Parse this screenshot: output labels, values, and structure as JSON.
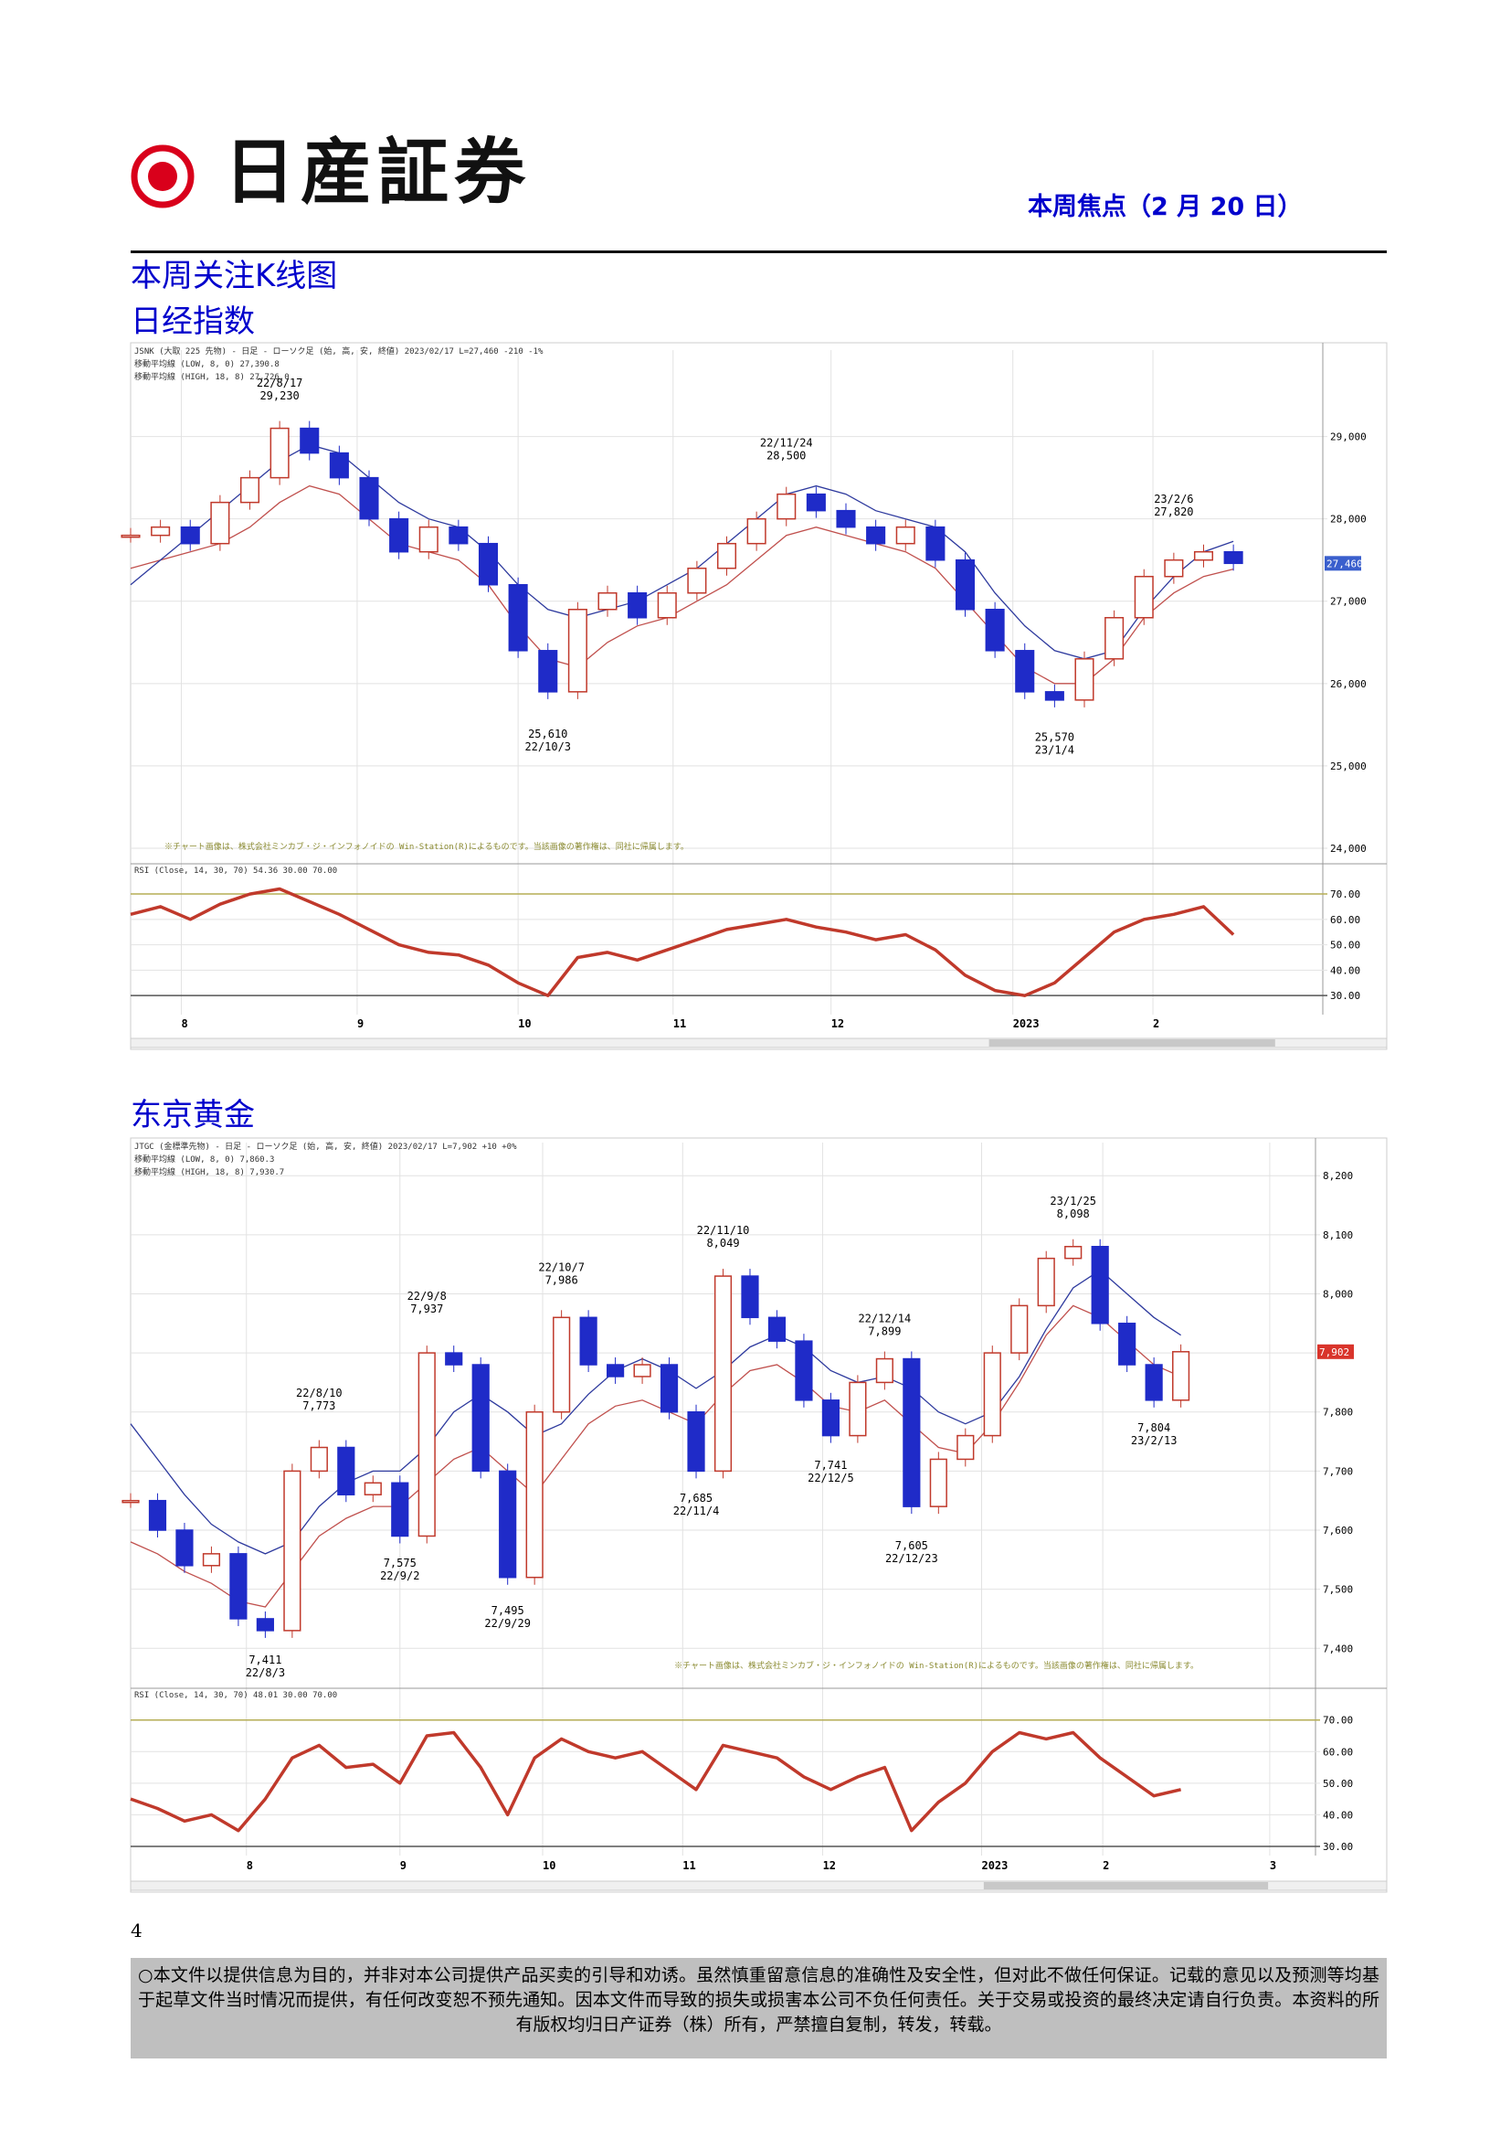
{
  "header": {
    "brand": "日産証券",
    "focus": "本周焦点（2 月 20 日）"
  },
  "section_title": "本周关注K线图",
  "charts": [
    {
      "type": "candlestick",
      "title": "日经指数",
      "header_lines": [
        "JSNK (大取 225 先物) - 日足 - ローソク足 (始, 高, 安, 終値)   2023/02/17  L=27,460  -210  -1%",
        "移動平均線 (LOW, 8, 0) 27,390.8",
        "移動平均線 (HIGH, 18, 8) 27,726.0"
      ],
      "note": "※チャート画像は、株式会社ミンカブ・ジ・インフォノイドの Win-Station(R)によるものです。当該画像の著作権は、同社に帰属します。",
      "xlim": [
        0,
        40
      ],
      "xticks": [
        {
          "value": 1.7,
          "label": "8"
        },
        {
          "value": 7.6,
          "label": "9"
        },
        {
          "value": 13,
          "label": "10"
        },
        {
          "value": 18.2,
          "label": "11"
        },
        {
          "value": 23.5,
          "label": "12"
        },
        {
          "value": 29.6,
          "label": "2023"
        },
        {
          "value": 34.3,
          "label": "2"
        }
      ],
      "ylim": [
        23900,
        30050
      ],
      "yticks": [
        {
          "value": 24000,
          "label": "24,000"
        },
        {
          "value": 25000,
          "label": "25,000"
        },
        {
          "value": 26000,
          "label": "26,000"
        },
        {
          "value": 27000,
          "label": "27,000"
        },
        {
          "value": 28000,
          "label": "28,000"
        },
        {
          "value": 29000,
          "label": "29,000"
        }
      ],
      "closes": [
        27800,
        27900,
        27700,
        28200,
        28500,
        29100,
        28800,
        28500,
        28000,
        27600,
        27900,
        27700,
        27200,
        26400,
        25900,
        26900,
        27100,
        26800,
        27100,
        27400,
        27700,
        28000,
        28300,
        28100,
        27900,
        27700,
        27900,
        27500,
        26900,
        26400,
        25900,
        25800,
        26300,
        26800,
        27300,
        27500,
        27600,
        27460
      ],
      "ma_low": {
        "color": "#c0504d",
        "values": [
          27400,
          27500,
          27600,
          27700,
          27900,
          28200,
          28400,
          28300,
          28000,
          27700,
          27600,
          27500,
          27200,
          26700,
          26300,
          26200,
          26500,
          26700,
          26800,
          27000,
          27200,
          27500,
          27800,
          27900,
          27800,
          27700,
          27600,
          27400,
          27000,
          26600,
          26200,
          26000,
          26000,
          26300,
          26800,
          27100,
          27300,
          27390
        ]
      },
      "ma_high": {
        "color": "#2e3a9e",
        "values": [
          27200,
          27500,
          27800,
          28100,
          28400,
          28700,
          28900,
          28800,
          28500,
          28200,
          28000,
          27900,
          27600,
          27200,
          26900,
          26800,
          26900,
          27000,
          27200,
          27400,
          27700,
          28000,
          28300,
          28400,
          28300,
          28100,
          28000,
          27900,
          27600,
          27100,
          26700,
          26400,
          26300,
          26400,
          26900,
          27300,
          27600,
          27726
        ]
      },
      "up_color": "#c0392b",
      "down_color": "#1f2bc8",
      "last": {
        "value": 27460,
        "label": "27,460",
        "color": "#3a5fcd"
      },
      "annotations": [
        {
          "x": 5,
          "value": 29230,
          "price": "29,230",
          "date": "22/8/17",
          "position": "above"
        },
        {
          "x": 14,
          "value": 25610,
          "price": "25,610",
          "date": "22/10/3",
          "position": "below"
        },
        {
          "x": 22,
          "value": 28500,
          "price": "28,500",
          "date": "22/11/24",
          "position": "above"
        },
        {
          "x": 31,
          "value": 25570,
          "price": "25,570",
          "date": "23/1/4",
          "position": "below"
        },
        {
          "x": 35,
          "value": 27820,
          "price": "27,820",
          "date": "23/2/6",
          "position": "above"
        }
      ],
      "rsi": {
        "header": "RSI (Close, 14, 30, 70) 54.36 30.00 70.00",
        "color": "#c0392b",
        "ylim": [
          22.5,
          76.5
        ],
        "yticks": [
          {
            "value": 30,
            "label": "30.00"
          },
          {
            "value": 40,
            "label": "40.00"
          },
          {
            "value": 50,
            "label": "50.00"
          },
          {
            "value": 60,
            "label": "60.00"
          },
          {
            "value": 70,
            "label": "70.00"
          }
        ],
        "values": [
          62,
          65,
          60,
          66,
          70,
          72,
          67,
          62,
          56,
          50,
          47,
          46,
          42,
          35,
          30,
          45,
          47,
          44,
          48,
          52,
          56,
          58,
          60,
          57,
          55,
          52,
          54,
          48,
          38,
          32,
          30,
          35,
          45,
          55,
          60,
          62,
          65,
          54
        ]
      }
    },
    {
      "type": "candlestick",
      "title": "东京黄金",
      "header_lines": [
        "JTGC (金標準先物) - 日足 - ローソク足 (始, 高, 安, 終値)   2023/02/17  L=7,902  +10  +0%",
        "移動平均線 (LOW, 8, 0) 7,860.3",
        "移動平均線 (HIGH, 18, 8) 7,930.7"
      ],
      "note": "※チャート画像は、株式会社ミンカブ・ジ・インフォノイドの Win-Station(R)によるものです。当該画像の著作権は、同社に帰属します。",
      "xlim": [
        0,
        44
      ],
      "xticks": [
        {
          "value": 4.3,
          "label": "8"
        },
        {
          "value": 10,
          "label": "9"
        },
        {
          "value": 15.3,
          "label": "10"
        },
        {
          "value": 20.5,
          "label": "11"
        },
        {
          "value": 25.7,
          "label": "12"
        },
        {
          "value": 31.6,
          "label": "2023"
        },
        {
          "value": 36.1,
          "label": "2"
        },
        {
          "value": 42.3,
          "label": "3"
        }
      ],
      "ylim": [
        7354,
        8256
      ],
      "yticks": [
        {
          "value": 7400,
          "label": "7,400"
        },
        {
          "value": 7500,
          "label": "7,500"
        },
        {
          "value": 7600,
          "label": "7,600"
        },
        {
          "value": 7700,
          "label": "7,700"
        },
        {
          "value": 7800,
          "label": "7,800"
        },
        {
          "value": 7900,
          "label": "7,900"
        },
        {
          "value": 8000,
          "label": "8,000"
        },
        {
          "value": 8100,
          "label": "8,100"
        },
        {
          "value": 8200,
          "label": "8,200"
        }
      ],
      "closes": [
        7650,
        7600,
        7540,
        7560,
        7450,
        7430,
        7700,
        7740,
        7660,
        7680,
        7590,
        7900,
        7880,
        7700,
        7520,
        7800,
        7960,
        7880,
        7860,
        7880,
        7800,
        7700,
        8030,
        7960,
        7920,
        7820,
        7760,
        7850,
        7890,
        7640,
        7720,
        7760,
        7900,
        7980,
        8060,
        8080,
        7950,
        7880,
        7820,
        7902
      ],
      "ma_low": {
        "color": "#c0504d",
        "values": [
          7580,
          7560,
          7530,
          7510,
          7480,
          7470,
          7530,
          7590,
          7620,
          7640,
          7640,
          7680,
          7720,
          7740,
          7700,
          7660,
          7720,
          7780,
          7810,
          7820,
          7800,
          7780,
          7830,
          7870,
          7880,
          7850,
          7810,
          7800,
          7820,
          7780,
          7740,
          7730,
          7780,
          7850,
          7930,
          7980,
          7960,
          7920,
          7880,
          7860
        ]
      },
      "ma_high": {
        "color": "#2e3a9e",
        "values": [
          7780,
          7720,
          7660,
          7610,
          7580,
          7560,
          7580,
          7640,
          7680,
          7700,
          7700,
          7740,
          7800,
          7830,
          7800,
          7760,
          7780,
          7830,
          7870,
          7890,
          7870,
          7840,
          7870,
          7910,
          7930,
          7910,
          7870,
          7850,
          7860,
          7840,
          7800,
          7780,
          7800,
          7860,
          7940,
          8010,
          8040,
          8000,
          7960,
          7930
        ]
      },
      "up_color": "#c0392b",
      "down_color": "#1f2bc8",
      "last": {
        "value": 7902,
        "label": "7,902",
        "color": "#d9342b"
      },
      "annotations": [
        {
          "x": 5,
          "value": 7411,
          "price": "7,411",
          "date": "22/8/3",
          "position": "below"
        },
        {
          "x": 7,
          "value": 7773,
          "price": "7,773",
          "date": "22/8/10",
          "position": "above"
        },
        {
          "x": 10,
          "value": 7575,
          "price": "7,575",
          "date": "22/9/2",
          "position": "below"
        },
        {
          "x": 11,
          "value": 7937,
          "price": "7,937",
          "date": "22/9/8",
          "position": "above"
        },
        {
          "x": 14,
          "value": 7495,
          "price": "7,495",
          "date": "22/9/29",
          "position": "below"
        },
        {
          "x": 16,
          "value": 7986,
          "price": "7,986",
          "date": "22/10/7",
          "position": "above"
        },
        {
          "x": 21,
          "value": 7685,
          "price": "7,685",
          "date": "22/11/4",
          "position": "below"
        },
        {
          "x": 22,
          "value": 8049,
          "price": "8,049",
          "date": "22/11/10",
          "position": "above"
        },
        {
          "x": 26,
          "value": 7741,
          "price": "7,741",
          "date": "22/12/5",
          "position": "below"
        },
        {
          "x": 28,
          "value": 7899,
          "price": "7,899",
          "date": "22/12/14",
          "position": "above"
        },
        {
          "x": 29,
          "value": 7605,
          "price": "7,605",
          "date": "22/12/23",
          "position": "below"
        },
        {
          "x": 35,
          "value": 8098,
          "price": "8,098",
          "date": "23/1/25",
          "position": "above"
        },
        {
          "x": 38,
          "value": 7804,
          "price": "7,804",
          "date": "23/2/13",
          "position": "below"
        }
      ],
      "rsi": {
        "header": "RSI (Close, 14, 30, 70) 48.01 30.00 70.00",
        "color": "#c0392b",
        "ylim": [
          27.1,
          75.7
        ],
        "yticks": [
          {
            "value": 30,
            "label": "30.00"
          },
          {
            "value": 40,
            "label": "40.00"
          },
          {
            "value": 50,
            "label": "50.00"
          },
          {
            "value": 60,
            "label": "60.00"
          },
          {
            "value": 70,
            "label": "70.00"
          }
        ],
        "values": [
          45,
          42,
          38,
          40,
          35,
          45,
          58,
          62,
          55,
          56,
          50,
          65,
          66,
          55,
          40,
          58,
          64,
          60,
          58,
          60,
          54,
          48,
          62,
          60,
          58,
          52,
          48,
          52,
          55,
          35,
          44,
          50,
          60,
          66,
          64,
          66,
          58,
          52,
          46,
          48
        ]
      }
    }
  ],
  "page_number": "4",
  "footer": "○本文件以提供信息为目的，并非对本公司提供产品买卖的引导和劝诱。虽然慎重留意信息的准确性及安全性，但对此不做任何保证。记载的意见以及预测等均基于起草文件当时情况而提供，有任何改变恕不预先通知。因本文件而导致的损失或损害本公司不负任何责任。关于交易或投资的最终决定请自行负责。本资料的所有版权均归日产证券（株）所有，严禁擅自复制，转发，转载。"
}
